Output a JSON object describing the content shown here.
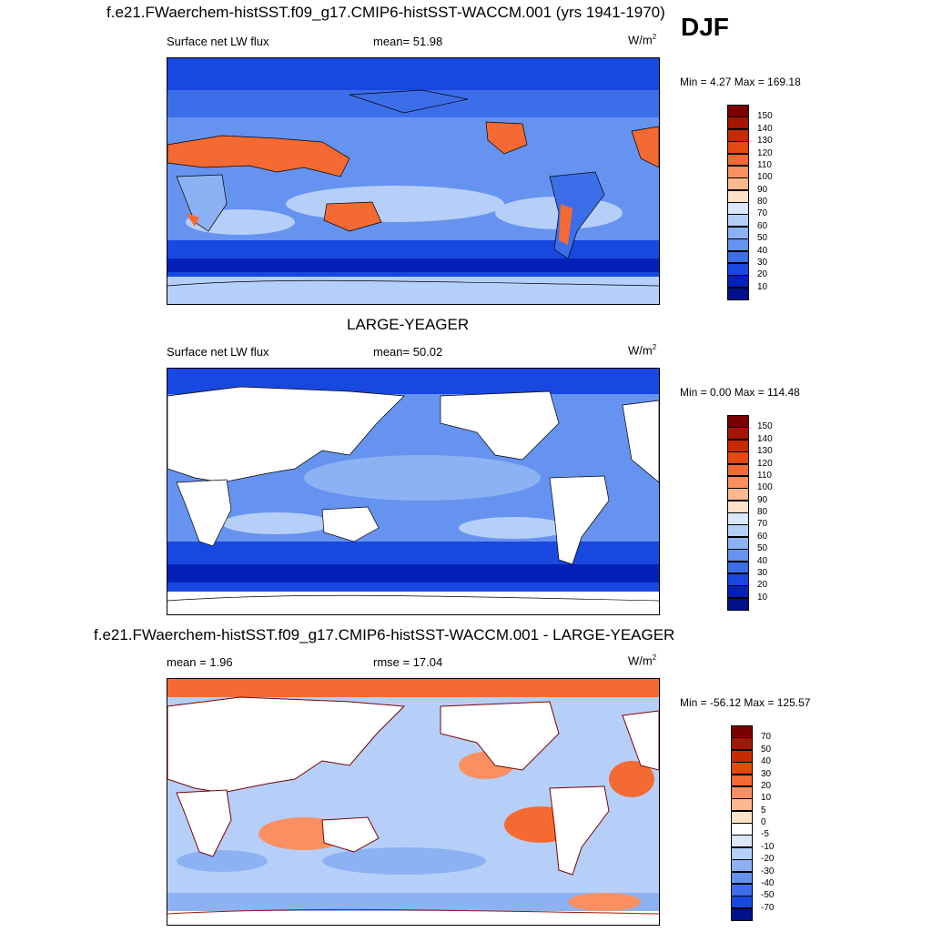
{
  "season": "DJF",
  "panels": [
    {
      "title": "f.e21.FWaerchem-histSST.f09_g17.CMIP6-histSST-WACCM.001 (yrs 1941-1970)",
      "left_label": "Surface net LW flux",
      "center_label": "mean=  51.98",
      "units": "W/m",
      "units_sup": "2",
      "minmax": "Min =   4.27 Max = 169.18",
      "colorbar": {
        "labels": [
          "150",
          "140",
          "130",
          "120",
          "110",
          "100",
          "90",
          "80",
          "70",
          "60",
          "50",
          "40",
          "30",
          "20",
          "10"
        ],
        "colors": [
          "#7a0000",
          "#a51500",
          "#c82a00",
          "#e44a0f",
          "#f56a32",
          "#fa9061",
          "#fdb88f",
          "#fde2c8",
          "#dbe8fb",
          "#b6cff8",
          "#8db2f3",
          "#6693ef",
          "#3d6eea",
          "#1848e0",
          "#0321b8",
          "#00118a"
        ]
      }
    },
    {
      "title": "LARGE-YEAGER",
      "left_label": "Surface net LW flux",
      "center_label": "mean=  50.02",
      "units": "W/m",
      "units_sup": "2",
      "minmax": "Min =   0.00 Max = 114.48",
      "colorbar": {
        "labels": [
          "150",
          "140",
          "130",
          "120",
          "110",
          "100",
          "90",
          "80",
          "70",
          "60",
          "50",
          "40",
          "30",
          "20",
          "10"
        ],
        "colors": [
          "#7a0000",
          "#a51500",
          "#c82a00",
          "#e44a0f",
          "#f56a32",
          "#fa9061",
          "#fdb88f",
          "#fde2c8",
          "#dbe8fb",
          "#b6cff8",
          "#8db2f3",
          "#6693ef",
          "#3d6eea",
          "#1848e0",
          "#0321b8",
          "#00118a"
        ]
      }
    },
    {
      "title": "f.e21.FWaerchem-histSST.f09_g17.CMIP6-histSST-WACCM.001 - LARGE-YEAGER",
      "left_label": "mean =   1.96",
      "center_label": "rmse =  17.04",
      "units": "W/m",
      "units_sup": "2",
      "minmax": "Min = -56.12 Max = 125.57",
      "colorbar": {
        "labels": [
          "70",
          "50",
          "40",
          "30",
          "20",
          "10",
          "5",
          "0",
          "-5",
          "-10",
          "-20",
          "-30",
          "-40",
          "-50",
          "-70"
        ],
        "colors": [
          "#7a0000",
          "#a51500",
          "#c82a00",
          "#e44a0f",
          "#f56a32",
          "#fa9061",
          "#fdb88f",
          "#fde2c8",
          "#ffffff",
          "#dbe8fb",
          "#b6cff8",
          "#8db2f3",
          "#6693ef",
          "#3d6eea",
          "#1848e0",
          "#00118a"
        ]
      }
    }
  ],
  "chart_data": {
    "type": "heatmap",
    "variable": "Surface net LW flux",
    "season": "DJF",
    "units": "W/m2",
    "maps": [
      {
        "name": "f.e21.FWaerchem-histSST.f09_g17.CMIP6-histSST-WACCM.001 (yrs 1941-1970)",
        "mean": 51.98,
        "min": 4.27,
        "max": 169.18,
        "levels": [
          10,
          20,
          30,
          40,
          50,
          60,
          70,
          80,
          90,
          100,
          110,
          120,
          130,
          140,
          150
        ]
      },
      {
        "name": "LARGE-YEAGER",
        "mean": 50.02,
        "min": 0.0,
        "max": 114.48,
        "levels": [
          10,
          20,
          30,
          40,
          50,
          60,
          70,
          80,
          90,
          100,
          110,
          120,
          130,
          140,
          150
        ]
      },
      {
        "name": "f.e21.FWaerchem-histSST.f09_g17.CMIP6-histSST-WACCM.001 - LARGE-YEAGER",
        "mean": 1.96,
        "rmse": 17.04,
        "min": -56.12,
        "max": 125.57,
        "levels": [
          -70,
          -50,
          -40,
          -30,
          -20,
          -10,
          -5,
          0,
          5,
          10,
          20,
          30,
          40,
          50,
          70
        ]
      }
    ]
  }
}
